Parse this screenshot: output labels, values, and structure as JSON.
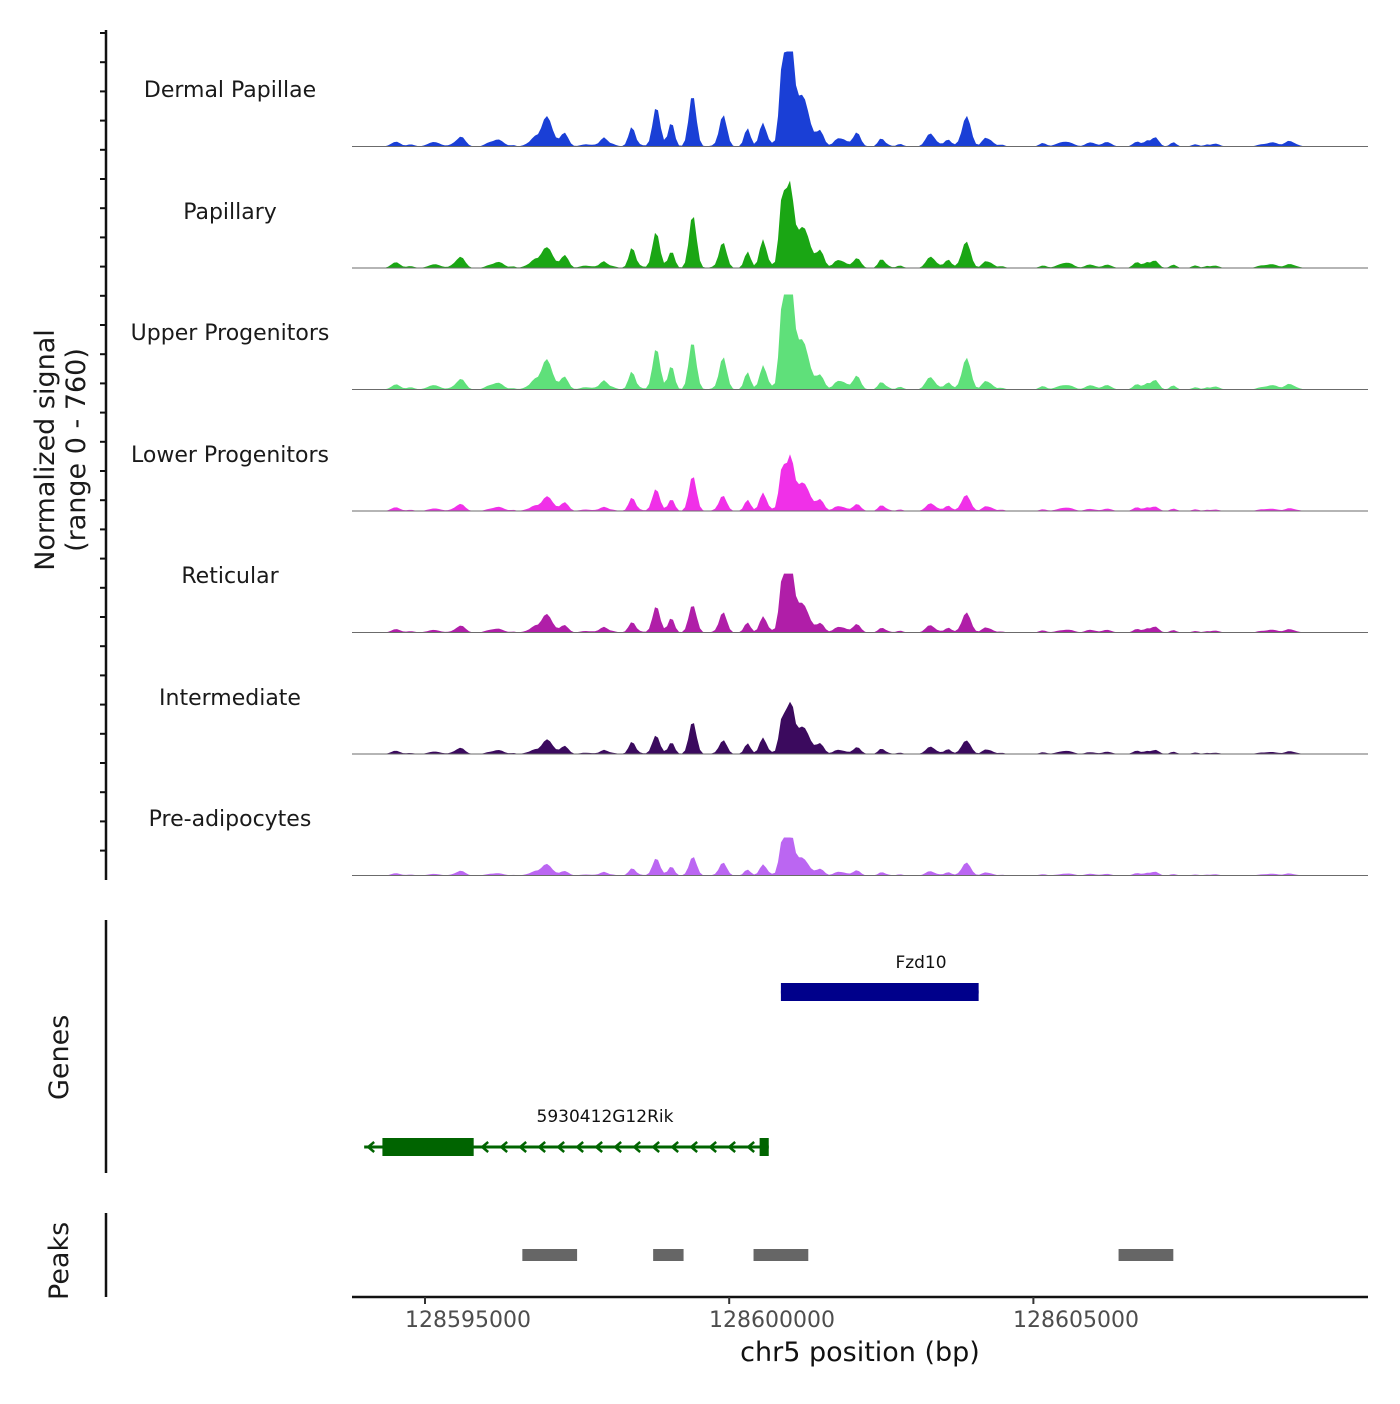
{
  "chart_data": {
    "type": "area",
    "region": {
      "chrom": "chr5",
      "start": 128593800,
      "end": 128610500
    },
    "y_axis": {
      "label_line1": "Normalized signal",
      "label_line2": "(range 0 - 760)",
      "ylim": [
        0,
        760
      ]
    },
    "x_axis": {
      "label": "chr5 position (bp)",
      "ticks": [
        128595000,
        128600000,
        128605000
      ],
      "tick_labels": [
        "128595000",
        "128600000",
        "128605000"
      ]
    },
    "tracks": [
      {
        "name": "Dermal Papillae",
        "color": "#1a3fd6",
        "scale": 1.0
      },
      {
        "name": "Papillary",
        "color": "#1aa614",
        "scale": 0.92
      },
      {
        "name": "Upper Progenitors",
        "color": "#5fe07a",
        "scale": 1.0
      },
      {
        "name": "Lower Progenitors",
        "color": "#f030e8",
        "scale": 0.6
      },
      {
        "name": "Reticular",
        "color": "#b01ea8",
        "scale": 0.62
      },
      {
        "name": "Intermediate",
        "color": "#3b0a5e",
        "scale": 0.55
      },
      {
        "name": "Pre-adipocytes",
        "color": "#bb66f2",
        "scale": 0.4
      }
    ],
    "peak_profile": [
      {
        "pos": 128601000,
        "height": 1.0,
        "width": 60
      },
      {
        "pos": 128600870,
        "height": 0.75,
        "width": 50
      },
      {
        "pos": 128601200,
        "height": 0.38,
        "width": 110
      },
      {
        "pos": 128599400,
        "height": 0.55,
        "width": 60
      },
      {
        "pos": 128598800,
        "height": 0.4,
        "width": 60
      },
      {
        "pos": 128599050,
        "height": 0.22,
        "width": 50
      },
      {
        "pos": 128598400,
        "height": 0.18,
        "width": 50
      },
      {
        "pos": 128599900,
        "height": 0.3,
        "width": 60
      },
      {
        "pos": 128600300,
        "height": 0.18,
        "width": 50
      },
      {
        "pos": 128600550,
        "height": 0.22,
        "width": 50
      },
      {
        "pos": 128601500,
        "height": 0.16,
        "width": 60
      },
      {
        "pos": 128602100,
        "height": 0.13,
        "width": 60
      },
      {
        "pos": 128602500,
        "height": 0.09,
        "width": 50
      },
      {
        "pos": 128597000,
        "height": 0.28,
        "width": 90
      },
      {
        "pos": 128597300,
        "height": 0.12,
        "width": 60
      },
      {
        "pos": 128596800,
        "height": 0.06,
        "width": 50
      },
      {
        "pos": 128603300,
        "height": 0.12,
        "width": 70
      },
      {
        "pos": 128603900,
        "height": 0.3,
        "width": 70
      },
      {
        "pos": 128603600,
        "height": 0.08,
        "width": 50
      },
      {
        "pos": 128604200,
        "height": 0.05,
        "width": 50
      },
      {
        "pos": 128606700,
        "height": 0.06,
        "width": 60
      },
      {
        "pos": 128607000,
        "height": 0.09,
        "width": 60
      },
      {
        "pos": 128607300,
        "height": 0.04,
        "width": 50
      },
      {
        "pos": 128605900,
        "height": 0.03,
        "width": 60
      },
      {
        "pos": 128595500,
        "height": 0.03,
        "width": 80
      }
    ],
    "genes": [
      {
        "name": "Fzd10",
        "start": 128600850,
        "end": 128604100,
        "strand": "+",
        "color": "#00008b",
        "exons": [
          {
            "start": 128600850,
            "end": 128604100
          }
        ]
      },
      {
        "name": "5930412G12Rik",
        "start": 128594000,
        "end": 128600650,
        "strand": "-",
        "color": "#006400",
        "exons": [
          {
            "start": 128594300,
            "end": 128595800
          },
          {
            "start": 128600500,
            "end": 128600650
          }
        ]
      }
    ],
    "peaks": [
      {
        "start": 128596600,
        "end": 128597500
      },
      {
        "start": 128598750,
        "end": 128599250
      },
      {
        "start": 128600400,
        "end": 128601300
      },
      {
        "start": 128606400,
        "end": 128607300
      }
    ],
    "panel_labels": {
      "genes": "Genes",
      "peaks": "Peaks"
    }
  }
}
